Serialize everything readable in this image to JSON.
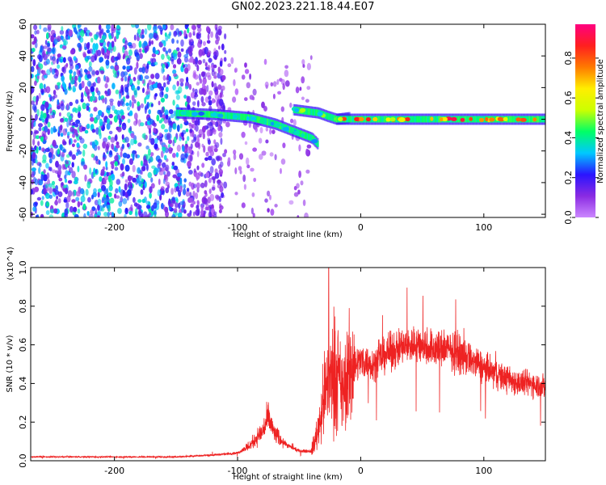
{
  "title": "GN02.2023.221.18.44.E07",
  "colors": {
    "background": "#ffffff",
    "snr_line": "#ee2222",
    "colorbar": [
      "#cc88ff",
      "#8a2be2",
      "#2a14ff",
      "#00c8ff",
      "#00ff66",
      "#ccff00",
      "#ffee00",
      "#ff7a00",
      "#ff1f1f",
      "#ff0080"
    ]
  },
  "chart_data": [
    {
      "type": "heatmap",
      "xlabel": "Height of straight line (km)",
      "ylabel": "Frequency (Hz)",
      "xlim": [
        -268,
        150
      ],
      "ylim": [
        -62,
        60
      ],
      "xticks": [
        -200,
        -100,
        0,
        100
      ],
      "yticks": [
        -60,
        -40,
        -20,
        0,
        20,
        40,
        60
      ],
      "grid": false,
      "colorbar": {
        "label": "Normalized spectral amplitude",
        "range": [
          0.0,
          0.97
        ],
        "ticks": [
          0.0,
          0.2,
          0.4,
          0.6,
          0.8
        ]
      },
      "features": [
        {
          "name": "scattered noise",
          "x_range": [
            -268,
            -110
          ],
          "y_range": [
            -62,
            60
          ],
          "amplitude": 0.25
        },
        {
          "name": "sparse noise",
          "x_range": [
            -110,
            -40
          ],
          "y_range": [
            -62,
            40
          ],
          "amplitude": 0.08
        },
        {
          "name": "sloped ridge",
          "x": [
            -150,
            -120,
            -90,
            -70,
            -60,
            -50,
            -40,
            -35
          ],
          "y": [
            4,
            3,
            1,
            -3,
            -6,
            -9,
            -12,
            -16
          ],
          "amplitude": 0.4
        },
        {
          "name": "ridge",
          "x": [
            -55,
            -45,
            -35,
            -28,
            -20,
            -10
          ],
          "y": [
            6,
            5,
            4,
            2,
            0,
            1
          ],
          "amplitude": 0.5
        },
        {
          "name": "flat band",
          "x": [
            -20,
            0,
            20,
            40,
            60,
            80,
            100,
            120,
            150
          ],
          "y": [
            0,
            0,
            0,
            0,
            0,
            0,
            0,
            0,
            0
          ],
          "amplitude": 0.9
        }
      ]
    },
    {
      "type": "line",
      "xlabel": "Height of straight line (km)",
      "ylabel": "SNR (10 * v/v)",
      "ylabel_multiplier": "(x10^4)",
      "xlim": [
        -268,
        150
      ],
      "ylim": [
        0.0,
        1.0
      ],
      "xticks": [
        -200,
        -100,
        0,
        100
      ],
      "yticks": [
        0.0,
        0.2,
        0.4,
        0.6,
        0.8,
        1.0
      ],
      "grid": false,
      "series": [
        {
          "envelope_x": [
            -268,
            -200,
            -150,
            -120,
            -100,
            -90,
            -80,
            -75,
            -70,
            -60,
            -50,
            -40,
            -35,
            -30,
            -25,
            -20,
            -15,
            -10,
            -5,
            0,
            10,
            20,
            30,
            40,
            50,
            60,
            70,
            80,
            90,
            100,
            110,
            120,
            130,
            140,
            150
          ],
          "envelope_y": [
            0.02,
            0.02,
            0.02,
            0.03,
            0.04,
            0.08,
            0.15,
            0.22,
            0.14,
            0.08,
            0.05,
            0.05,
            0.15,
            0.32,
            0.42,
            0.45,
            0.35,
            0.45,
            0.5,
            0.52,
            0.5,
            0.55,
            0.58,
            0.6,
            0.6,
            0.58,
            0.58,
            0.55,
            0.52,
            0.48,
            0.45,
            0.42,
            0.4,
            0.4,
            0.38
          ],
          "peak": {
            "x": -26,
            "y": 1.0
          }
        }
      ]
    }
  ]
}
